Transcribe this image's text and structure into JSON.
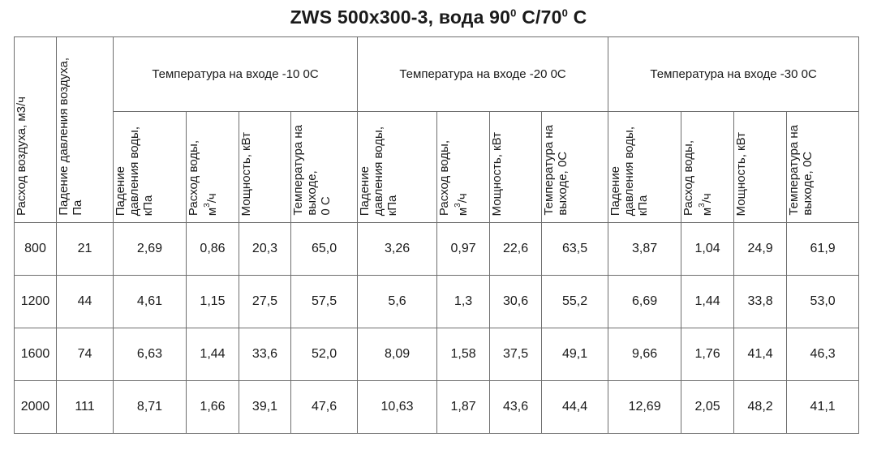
{
  "title": {
    "main": "ZWS 500x300-3, вода 90",
    "deg1": "0",
    "mid": " C/70",
    "deg2": "0",
    "end": " C"
  },
  "header": {
    "airflow": "Расход воздуха, м3/ч",
    "pressure_drop_line1": "Падение давления воздуха,",
    "pressure_drop_line2": "Па",
    "groups": [
      "Температура на входе -10 0С",
      "Температура на входе -20 0С",
      "Температура на входе -30 0С"
    ],
    "sub": {
      "water_pressure_line1": "Падение",
      "water_pressure_line2": "давления воды,",
      "water_pressure_line3": "кПа",
      "water_flow_line1": "Расход воды,",
      "water_flow_line2": "м",
      "water_flow_sup": "3",
      "water_flow_line2b": "/ч",
      "power": "Мощность, кВт",
      "outlet_temp_g1_line1": "Температура на",
      "outlet_temp_g1_line2": "выходе,",
      "outlet_temp_g1_line3": "0 С",
      "outlet_temp_line1": "Температура на",
      "outlet_temp_line2": "выходе, 0С"
    }
  },
  "rows": [
    [
      "800",
      "21",
      "2,69",
      "0,86",
      "20,3",
      "65,0",
      "3,26",
      "0,97",
      "22,6",
      "63,5",
      "3,87",
      "1,04",
      "24,9",
      "61,9"
    ],
    [
      "1200",
      "44",
      "4,61",
      "1,15",
      "27,5",
      "57,5",
      "5,6",
      "1,3",
      "30,6",
      "55,2",
      "6,69",
      "1,44",
      "33,8",
      "53,0"
    ],
    [
      "1600",
      "74",
      "6,63",
      "1,44",
      "33,6",
      "52,0",
      "8,09",
      "1,58",
      "37,5",
      "49,1",
      "9,66",
      "1,76",
      "41,4",
      "46,3"
    ],
    [
      "2000",
      "111",
      "8,71",
      "1,66",
      "39,1",
      "47,6",
      "10,63",
      "1,87",
      "43,6",
      "44,4",
      "12,69",
      "2,05",
      "48,2",
      "41,1"
    ]
  ]
}
